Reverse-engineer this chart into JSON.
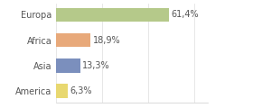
{
  "categories": [
    "Europa",
    "Africa",
    "Asia",
    "America"
  ],
  "values": [
    61.4,
    18.9,
    13.3,
    6.3
  ],
  "labels": [
    "61,4%",
    "18,9%",
    "13,3%",
    "6,3%"
  ],
  "bar_colors": [
    "#b5c98a",
    "#e8a97a",
    "#7b8fbd",
    "#e8d870"
  ],
  "background_color": "#ffffff",
  "xlim": [
    0,
    82
  ],
  "label_fontsize": 7,
  "tick_fontsize": 7,
  "bar_height": 0.55
}
